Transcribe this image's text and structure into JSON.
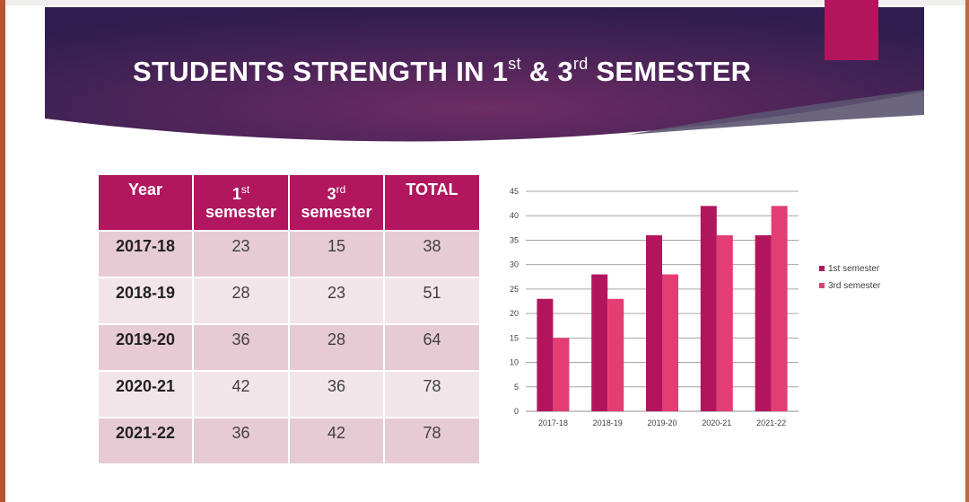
{
  "slide": {
    "title_part1": "STUDENTS STRENGTH IN 1",
    "title_sup1": "st",
    "title_part2": " & 3",
    "title_sup2": "rd",
    "title_part3": " SEMESTER"
  },
  "colors": {
    "banner_dark": "#2e1d4e",
    "banner_mid": "#6d2c64",
    "accent": "#b3145c",
    "series_1st": "#b2155e",
    "series_3rd": "#e33d74",
    "table_header": "#b1165e",
    "row_dark": "#e6cbd4",
    "row_light": "#f2e5ea"
  },
  "table": {
    "headers": [
      {
        "main": "Year",
        "sup": ""
      },
      {
        "main": "1",
        "sup": "st",
        "line2": "semester"
      },
      {
        "main": "3",
        "sup": "rd",
        "line2": "semester"
      },
      {
        "main": "TOTAL",
        "sup": ""
      }
    ],
    "rows": [
      {
        "year": "2017-18",
        "sem1": "23",
        "sem3": "15",
        "total": "38"
      },
      {
        "year": "2018-19",
        "sem1": "28",
        "sem3": "23",
        "total": "51"
      },
      {
        "year": "2019-20",
        "sem1": "36",
        "sem3": "28",
        "total": "64"
      },
      {
        "year": "2020-21",
        "sem1": "42",
        "sem3": "36",
        "total": "78"
      },
      {
        "year": "2021-22",
        "sem1": "36",
        "sem3": "42",
        "total": "78"
      }
    ]
  },
  "chart_data": {
    "type": "bar",
    "categories": [
      "2017-18",
      "2018-19",
      "2019-20",
      "2020-21",
      "2021-22"
    ],
    "series": [
      {
        "name": "1st semester",
        "values": [
          23,
          28,
          36,
          42,
          36
        ],
        "color": "#b2155e"
      },
      {
        "name": "3rd semester",
        "values": [
          15,
          23,
          28,
          36,
          42
        ],
        "color": "#e33d74"
      }
    ],
    "ylim": [
      0,
      45
    ],
    "yticks": [
      0,
      5,
      10,
      15,
      20,
      25,
      30,
      35,
      40,
      45
    ],
    "grid": true,
    "legend": "right"
  }
}
